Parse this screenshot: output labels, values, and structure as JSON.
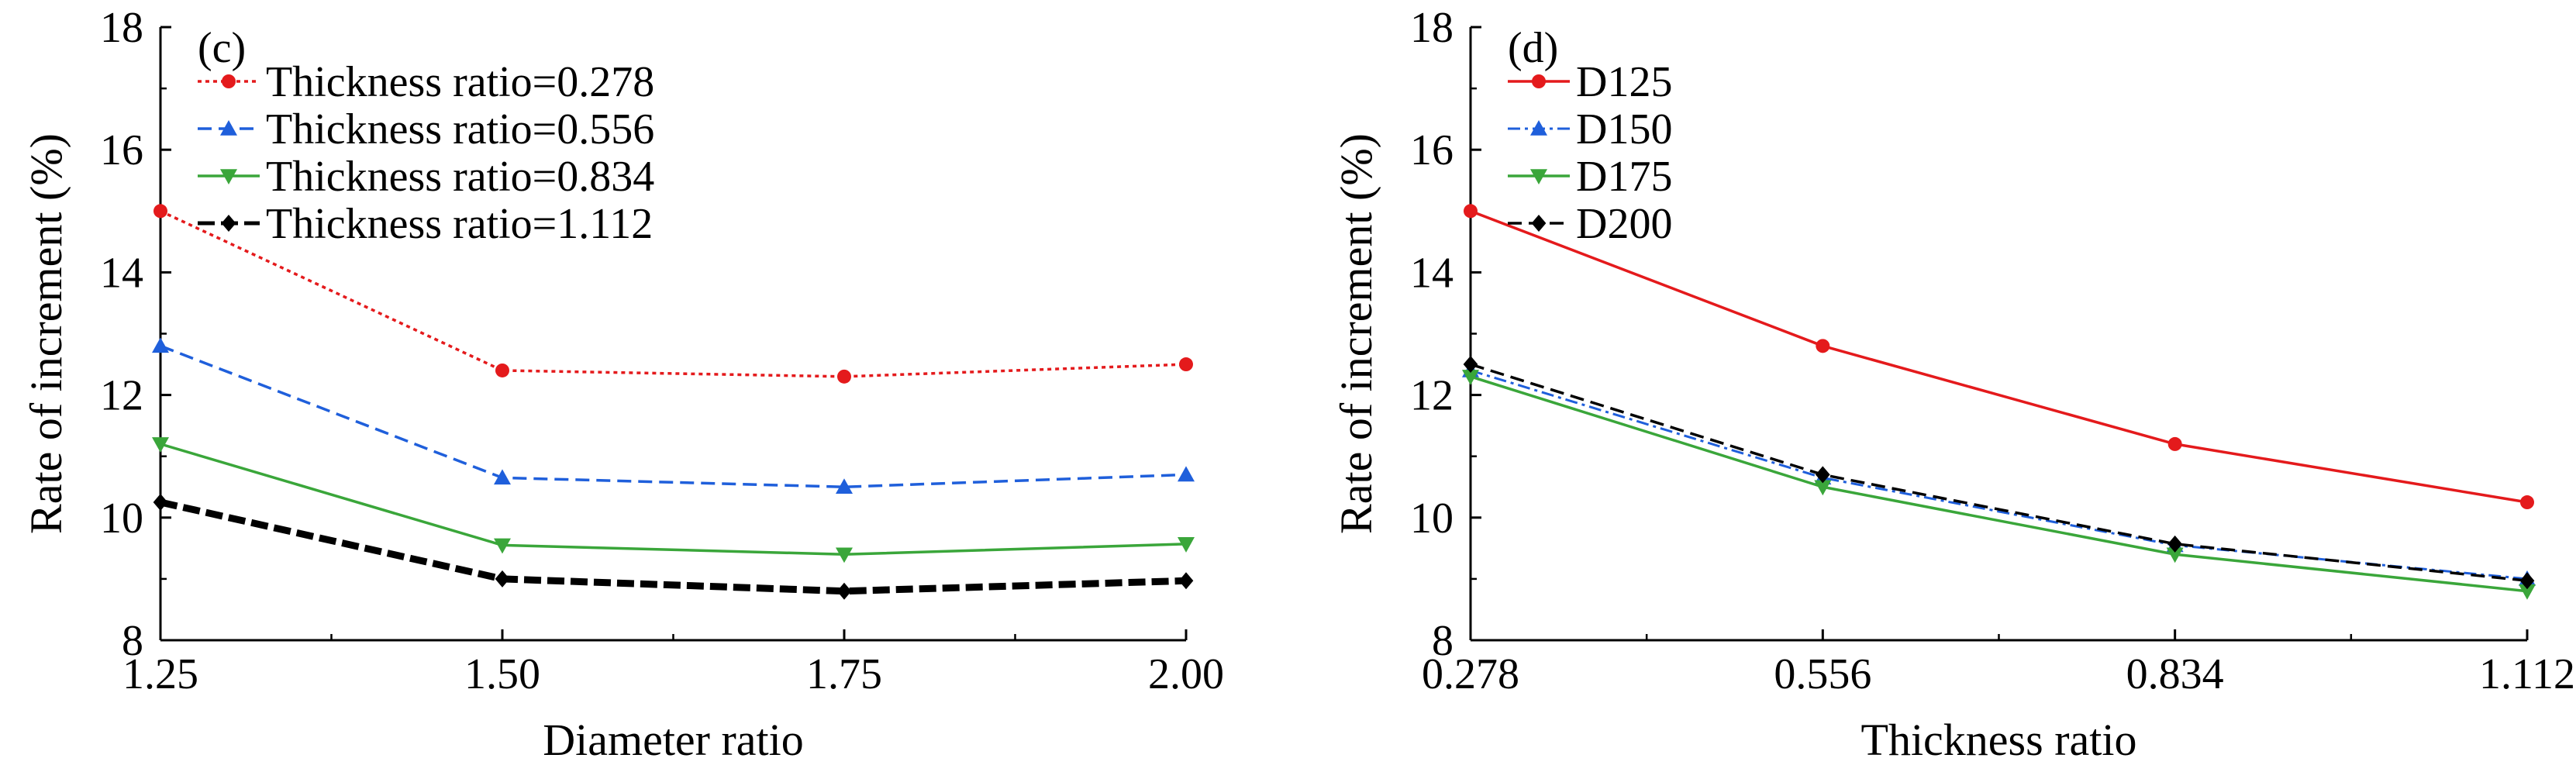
{
  "chart_data": [
    {
      "type": "line",
      "panel_label": "(c)",
      "xlabel": "Diameter ratio",
      "ylabel": "Rate of increment (%)",
      "x": [
        1.25,
        1.5,
        1.75,
        2.0
      ],
      "x_tick_labels": [
        "1.25",
        "1.50",
        "1.75",
        "2.00"
      ],
      "xlim": [
        1.25,
        2.0
      ],
      "ylim": [
        8,
        18
      ],
      "y_ticks": [
        8,
        10,
        12,
        14,
        16,
        18
      ],
      "y_tick_labels": [
        "8",
        "10",
        "12",
        "14",
        "16",
        "18"
      ],
      "legend_position": "top-left",
      "grid": false,
      "series": [
        {
          "name": "Thickness ratio=0.278",
          "values": [
            15.0,
            12.4,
            12.3,
            12.5
          ],
          "color": "#e41a1c",
          "marker": "circle",
          "dash": "dotted"
        },
        {
          "name": "Thickness ratio=0.556",
          "values": [
            12.8,
            10.65,
            10.5,
            10.7
          ],
          "color": "#1f5fdb",
          "marker": "triangle-up",
          "dash": "dashed"
        },
        {
          "name": "Thickness ratio=0.834",
          "values": [
            11.2,
            9.55,
            9.4,
            9.57
          ],
          "color": "#3aa63a",
          "marker": "triangle-down",
          "dash": "solid"
        },
        {
          "name": "Thickness ratio=1.112",
          "values": [
            10.25,
            9.0,
            8.8,
            8.97
          ],
          "color": "#000000",
          "marker": "diamond",
          "dash": "dashed-thick"
        }
      ]
    },
    {
      "type": "line",
      "panel_label": "(d)",
      "xlabel": "Thickness ratio",
      "ylabel": "Rate of increment (%)",
      "x": [
        0.278,
        0.556,
        0.834,
        1.112
      ],
      "x_tick_labels": [
        "0.278",
        "0.556",
        "0.834",
        "1.112"
      ],
      "xlim": [
        0.278,
        1.112
      ],
      "ylim": [
        8,
        18
      ],
      "y_ticks": [
        8,
        10,
        12,
        14,
        16,
        18
      ],
      "y_tick_labels": [
        "8",
        "10",
        "12",
        "14",
        "16",
        "18"
      ],
      "legend_position": "top-left",
      "grid": false,
      "series": [
        {
          "name": "D125",
          "values": [
            15.0,
            12.8,
            11.2,
            10.25
          ],
          "color": "#e41a1c",
          "marker": "circle",
          "dash": "solid"
        },
        {
          "name": "D150",
          "values": [
            12.4,
            10.65,
            9.55,
            9.0
          ],
          "color": "#1f5fdb",
          "marker": "triangle-up",
          "dash": "dashdot"
        },
        {
          "name": "D175",
          "values": [
            12.3,
            10.5,
            9.4,
            8.8
          ],
          "color": "#3aa63a",
          "marker": "triangle-down",
          "dash": "solid"
        },
        {
          "name": "D200",
          "values": [
            12.5,
            10.7,
            9.57,
            8.97
          ],
          "color": "#000000",
          "marker": "diamond",
          "dash": "dashed"
        }
      ]
    }
  ]
}
